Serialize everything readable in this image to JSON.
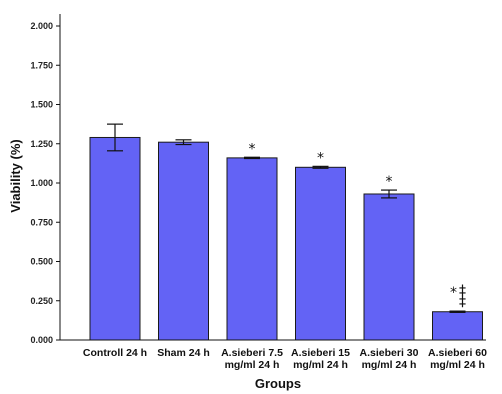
{
  "chart_data": {
    "type": "bar",
    "xlabel": "Groups",
    "ylabel": "Viability (%)",
    "ylim": [
      0,
      2.0
    ],
    "yticks": [
      "0.000",
      "0.250",
      "0.500",
      "0.750",
      "1.000",
      "1.250",
      "1.500",
      "1.750",
      "2.000"
    ],
    "grid": false,
    "categories": [
      [
        "Controll 24 h"
      ],
      [
        "Sham 24 h"
      ],
      [
        "A.sieberi 7.5",
        "mg/ml 24 h"
      ],
      [
        "A.sieberi 15",
        "mg/ml 24 h"
      ],
      [
        "A.sieberi 30",
        "mg/ml 24 h"
      ],
      [
        "A.sieberi 60",
        "mg/ml 24 h"
      ]
    ],
    "values": [
      1.29,
      1.26,
      1.16,
      1.1,
      0.93,
      0.18
    ],
    "errors": [
      0.085,
      0.015,
      0.004,
      0.006,
      0.025,
      0.004
    ],
    "annotations": [
      [],
      [],
      [
        "*"
      ],
      [
        "*"
      ],
      [
        "*"
      ],
      [
        "*",
        "‡",
        "‡"
      ]
    ],
    "colors": {
      "bar_fill": "#6363f5",
      "bar_stroke": "#1a1a1a"
    }
  }
}
